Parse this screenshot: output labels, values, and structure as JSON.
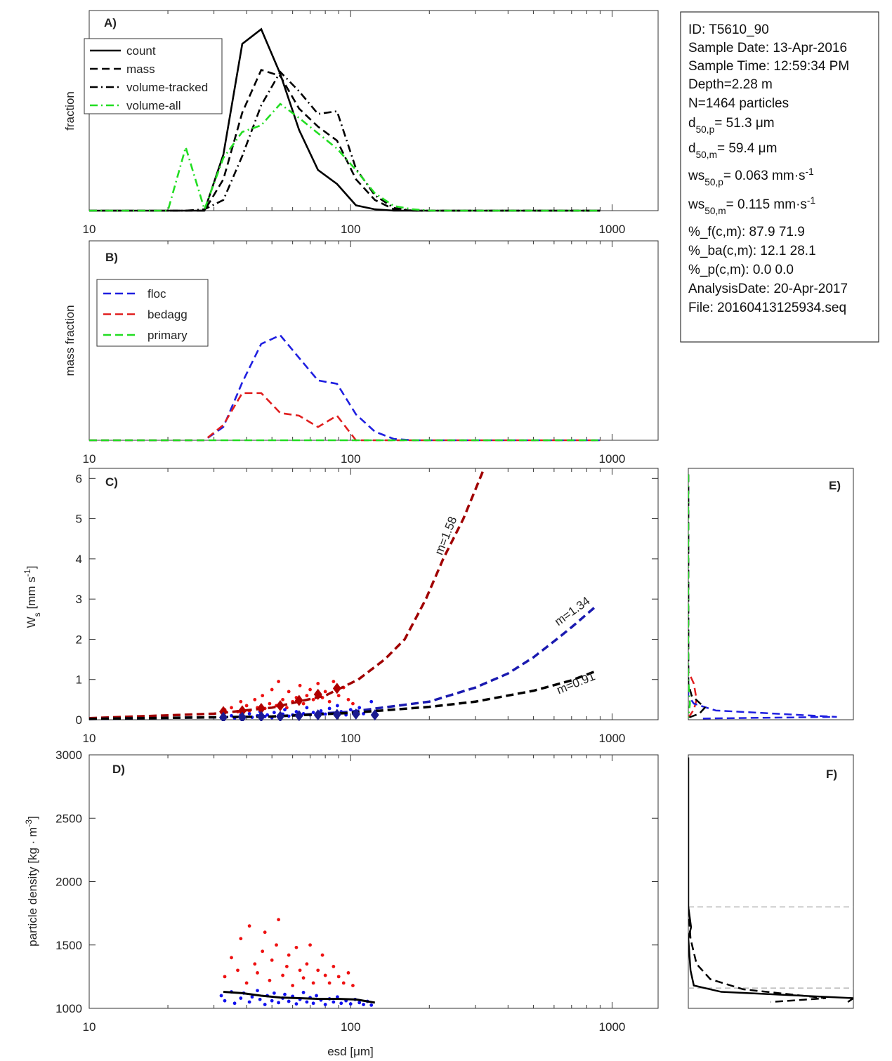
{
  "chart_data": [
    {
      "type": "line",
      "label": "A)",
      "y_label": "fraction",
      "xscale": "log",
      "xlim": [
        10,
        1500
      ],
      "ylim": [
        0,
        0.3
      ],
      "xticks": [
        10,
        100,
        1000
      ],
      "xticks_minor": [
        20,
        30,
        40,
        50,
        60,
        70,
        80,
        90,
        200,
        300,
        400,
        500,
        600,
        700,
        800,
        900
      ],
      "legend": "upper left",
      "x": [
        10,
        20,
        23.4,
        27.6,
        32.6,
        38.5,
        45.5,
        53.8,
        63.5,
        75,
        88.7,
        104.8,
        123.8,
        146.3,
        172.9,
        204,
        900
      ],
      "series": [
        {
          "name": "count",
          "color": "#000000",
          "linestyle": "solid",
          "values": [
            0,
            0,
            0,
            0,
            0.084,
            0.25,
            0.272,
            0.205,
            0.121,
            0.061,
            0.04,
            0.008,
            0.002,
            0,
            0,
            0,
            0
          ]
        },
        {
          "name": "mass",
          "color": "#000000",
          "linestyle": "dashed",
          "values": [
            0,
            0,
            0,
            0,
            0.047,
            0.147,
            0.211,
            0.202,
            0.153,
            0.126,
            0.105,
            0.047,
            0.016,
            0.002,
            0,
            0,
            0
          ]
        },
        {
          "name": "volume-tracked",
          "color": "#000000",
          "linestyle": "dashdot",
          "values": [
            0,
            0,
            0,
            0.002,
            0.016,
            0.082,
            0.158,
            0.208,
            0.179,
            0.145,
            0.149,
            0.063,
            0.023,
            0.004,
            0,
            0,
            0
          ]
        },
        {
          "name": "volume-all",
          "color": "#22dd22",
          "linestyle": "dashdot",
          "values": [
            0,
            0,
            0.095,
            0.002,
            0.079,
            0.118,
            0.128,
            0.16,
            0.139,
            0.116,
            0.093,
            0.061,
            0.026,
            0.007,
            0.002,
            0,
            0
          ]
        }
      ]
    },
    {
      "type": "line",
      "label": "B)",
      "y_label": "mass fraction",
      "xscale": "log",
      "xlim": [
        10,
        1500
      ],
      "ylim": [
        0,
        0.3
      ],
      "xticks": [
        10,
        100,
        1000
      ],
      "xticks_minor": [
        20,
        30,
        40,
        50,
        60,
        70,
        80,
        90,
        200,
        300,
        400,
        500,
        600,
        700,
        800,
        900
      ],
      "legend": "upper left",
      "x": [
        10,
        20,
        23.4,
        27.6,
        32.6,
        38.5,
        45.5,
        53.8,
        63.5,
        75,
        88.7,
        104.8,
        123.8,
        146.3,
        172.9,
        204,
        900
      ],
      "series": [
        {
          "name": "floc",
          "color": "#1f1fe0",
          "linestyle": "dashed",
          "values": [
            0,
            0,
            0,
            0,
            0.02,
            0.087,
            0.145,
            0.158,
            0.124,
            0.09,
            0.085,
            0.039,
            0.013,
            0.002,
            0,
            0,
            0
          ]
        },
        {
          "name": "bedagg",
          "color": "#e01f1f",
          "linestyle": "dashed",
          "values": [
            0,
            0,
            0,
            0,
            0.023,
            0.071,
            0.071,
            0.041,
            0.037,
            0.02,
            0.037,
            0,
            0,
            0,
            0,
            0,
            0
          ]
        },
        {
          "name": "primary",
          "color": "#22dd22",
          "linestyle": "dashed",
          "values": [
            0,
            0,
            0,
            0,
            0,
            0,
            0,
            0,
            0,
            0,
            0,
            0,
            0,
            0,
            0,
            0,
            0
          ]
        }
      ]
    },
    {
      "type": "scatter",
      "label": "C)",
      "y_label": [
        {
          "text": "W"
        },
        {
          "sub": "s"
        },
        {
          "text": " [mm s"
        },
        {
          "sup": "-1"
        },
        {
          "text": "]"
        }
      ],
      "xscale": "log",
      "xlim": [
        10,
        1500
      ],
      "ylim": [
        0,
        6.25
      ],
      "yticks": [
        0,
        1,
        2,
        3,
        4,
        5,
        6
      ],
      "xticks": [
        10,
        100,
        1000
      ],
      "xticks_minor": [
        20,
        30,
        40,
        50,
        60,
        70,
        80,
        90,
        200,
        300,
        400,
        500,
        600,
        700,
        800,
        900
      ],
      "annotations": [
        {
          "text": "m=1.58",
          "color": "#a00000"
        },
        {
          "text": "m=1.34",
          "color": "#1a1ab0"
        },
        {
          "text": "m=0.91",
          "color": "#000000"
        }
      ],
      "series": [
        {
          "color": "#ee1111",
          "marker": "points",
          "x": [
            33,
            35,
            37,
            38,
            40,
            41,
            43,
            44,
            46,
            47,
            49,
            50,
            52,
            53,
            55,
            57,
            58,
            60,
            62,
            64,
            66,
            68,
            70,
            72,
            75,
            78,
            80,
            83,
            86,
            90,
            94,
            98,
            102
          ],
          "values": [
            0.25,
            0.3,
            0.2,
            0.45,
            0.35,
            0.22,
            0.5,
            0.3,
            0.6,
            0.28,
            0.4,
            0.75,
            0.35,
            0.95,
            0.5,
            0.3,
            0.7,
            0.45,
            0.55,
            0.85,
            0.4,
            0.6,
            0.75,
            0.5,
            0.9,
            0.55,
            0.7,
            0.45,
            0.95,
            0.6,
            0.8,
            0.5,
            0.4
          ]
        },
        {
          "color": "#1111ee",
          "marker": "points",
          "x": [
            32,
            33,
            35,
            36,
            38,
            39,
            41,
            42,
            44,
            45,
            47,
            48,
            50,
            51,
            53,
            55,
            56,
            58,
            60,
            62,
            64,
            66,
            68,
            70,
            72,
            74,
            77,
            80,
            83,
            86,
            89,
            92,
            96,
            100,
            104,
            108,
            112,
            116,
            120
          ],
          "values": [
            0.05,
            0.08,
            0.1,
            0.04,
            0.12,
            0.07,
            0.15,
            0.06,
            0.1,
            0.2,
            0.08,
            0.12,
            0.05,
            0.18,
            0.1,
            0.14,
            0.25,
            0.09,
            0.12,
            0.2,
            0.1,
            0.15,
            0.3,
            0.12,
            0.18,
            0.1,
            0.22,
            0.14,
            0.28,
            0.16,
            0.35,
            0.2,
            0.12,
            0.25,
            0.18,
            0.3,
            0.15,
            0.22,
            0.45
          ]
        },
        {
          "color": "#a00000",
          "linestyle": "dashed",
          "x": [
            10,
            30,
            50,
            80,
            107,
            135,
            161,
            194,
            226,
            270,
            324
          ],
          "values": [
            0.04,
            0.15,
            0.3,
            0.6,
            1,
            1.5,
            2,
            3,
            4,
            5,
            6.25
          ]
        },
        {
          "color": "#1a1ab0",
          "linestyle": "dashed",
          "x": [
            10,
            50,
            100,
            200,
            300,
            400,
            500,
            600,
            700,
            860
          ],
          "values": [
            0.02,
            0.08,
            0.2,
            0.45,
            0.8,
            1.15,
            1.55,
            1.95,
            2.3,
            2.8
          ]
        },
        {
          "color": "#000000",
          "linestyle": "dashed",
          "x": [
            10,
            50,
            100,
            200,
            300,
            500,
            700,
            860
          ],
          "values": [
            0.02,
            0.08,
            0.17,
            0.32,
            0.45,
            0.72,
            0.98,
            1.2
          ]
        },
        {
          "color": "#b00000",
          "marker": "diamond",
          "x": [
            32.6,
            38.5,
            45.5,
            53.8,
            63.5,
            75,
            88.7
          ],
          "values": [
            0.2,
            0.22,
            0.28,
            0.35,
            0.48,
            0.63,
            0.78
          ]
        },
        {
          "color": "#1a1a90",
          "marker": "diamond",
          "x": [
            32.6,
            38.5,
            45.5,
            53.8,
            63.5,
            75,
            88.7,
            104.8,
            123.8
          ],
          "values": [
            0.06,
            0.06,
            0.08,
            0.08,
            0.1,
            0.12,
            0.13,
            0.14,
            0.12
          ]
        }
      ]
    },
    {
      "type": "scatter",
      "label": "D)",
      "y_label": [
        {
          "text": "particle density [kg · m"
        },
        {
          "sup": "-3"
        },
        {
          "text": "]"
        }
      ],
      "x_label": [
        {
          "text": "esd [μm]"
        }
      ],
      "xscale": "log",
      "xlim": [
        10,
        1500
      ],
      "ylim": [
        1000,
        3000
      ],
      "yticks": [
        1000,
        1500,
        2000,
        2500,
        3000
      ],
      "xticks": [
        10,
        100,
        1000
      ],
      "xticks_minor": [
        20,
        30,
        40,
        50,
        60,
        70,
        80,
        90,
        200,
        300,
        400,
        500,
        600,
        700,
        800,
        900
      ],
      "series": [
        {
          "color": "#ee1111",
          "marker": "points",
          "x": [
            33,
            35,
            37,
            38,
            40,
            41,
            43,
            44,
            46,
            47,
            49,
            50,
            52,
            53,
            55,
            57,
            58,
            60,
            62,
            64,
            66,
            68,
            70,
            72,
            75,
            78,
            80,
            83,
            86,
            90,
            94,
            98,
            102
          ],
          "values": [
            1250,
            1400,
            1300,
            1550,
            1200,
            1650,
            1350,
            1280,
            1450,
            1600,
            1220,
            1380,
            1500,
            1700,
            1260,
            1330,
            1420,
            1180,
            1480,
            1300,
            1240,
            1350,
            1500,
            1200,
            1300,
            1420,
            1260,
            1200,
            1330,
            1250,
            1200,
            1280,
            1180
          ]
        },
        {
          "color": "#1111ee",
          "marker": "points",
          "x": [
            32,
            33,
            35,
            36,
            38,
            39,
            41,
            42,
            44,
            45,
            47,
            48,
            50,
            51,
            53,
            55,
            56,
            58,
            60,
            62,
            64,
            66,
            68,
            70,
            72,
            74,
            77,
            80,
            83,
            86,
            89,
            92,
            96,
            100,
            104,
            108,
            112,
            116,
            120
          ],
          "values": [
            1100,
            1060,
            1130,
            1040,
            1080,
            1120,
            1050,
            1090,
            1140,
            1070,
            1030,
            1100,
            1060,
            1120,
            1045,
            1080,
            1110,
            1055,
            1095,
            1035,
            1070,
            1125,
            1050,
            1085,
            1040,
            1100,
            1065,
            1030,
            1075,
            1050,
            1090,
            1040,
            1060,
            1035,
            1070,
            1045,
            1030,
            1055,
            1025
          ]
        },
        {
          "color": "#000000",
          "linestyle": "solid",
          "x": [
            32.6,
            38.5,
            45.5,
            53.8,
            63.5,
            75,
            88.7,
            104.8,
            123.8
          ],
          "values": [
            1130,
            1120,
            1100,
            1085,
            1080,
            1075,
            1075,
            1070,
            1045
          ]
        }
      ]
    },
    {
      "type": "line",
      "label": "E)",
      "xlim": [
        0,
        0.3
      ],
      "ylim": [
        0,
        6.25
      ],
      "series": [
        {
          "color": "#e01f1f",
          "linestyle": "dashed",
          "x": [
            0,
            0,
            0.01,
            0.015,
            0.01,
            0
          ],
          "values": [
            6.1,
            1.2,
            0.9,
            0.5,
            0.25,
            0.05
          ]
        },
        {
          "color": "#1f1fe0",
          "linestyle": "dashed",
          "x": [
            0,
            0,
            0.01,
            0.05,
            0.27,
            0.02
          ],
          "values": [
            6.1,
            0.6,
            0.4,
            0.23,
            0.07,
            0.03
          ]
        },
        {
          "color": "#000000",
          "linestyle": "dashed",
          "x": [
            0,
            0,
            0.006,
            0.03,
            0.02,
            0
          ],
          "values": [
            6.1,
            0.9,
            0.6,
            0.3,
            0.15,
            0.05
          ]
        },
        {
          "color": "#22dd22",
          "linestyle": "dashdot",
          "x": [
            0,
            0,
            0.003,
            0
          ],
          "values": [
            6.1,
            1,
            0.4,
            0.05
          ]
        }
      ]
    },
    {
      "type": "line",
      "label": "F)",
      "xlim": [
        0,
        0.3
      ],
      "ylim": [
        1000,
        3000
      ],
      "hlines": [
        1800,
        1160
      ],
      "hline_color": "#aaaaaa",
      "series": [
        {
          "color": "#000000",
          "linestyle": "solid",
          "x": [
            0,
            0,
            0.005,
            0,
            0.004,
            0.01,
            0.06,
            0.3,
            0.29
          ],
          "values": [
            2980,
            1800,
            1640,
            1550,
            1300,
            1180,
            1130,
            1080,
            1050
          ]
        },
        {
          "color": "#000000",
          "linestyle": "dashed",
          "x": [
            0,
            0.004,
            0.015,
            0.04,
            0.1,
            0.25,
            0.15
          ],
          "values": [
            1800,
            1550,
            1350,
            1230,
            1150,
            1080,
            1050
          ]
        }
      ]
    }
  ],
  "info_box": {
    "lines": [
      [
        {
          "text": "ID: T5610_90"
        }
      ],
      [
        {
          "text": "Sample Date: 13-Apr-2016"
        }
      ],
      [
        {
          "text": "Sample Time: 12:59:34 PM"
        }
      ],
      [
        {
          "text": "Depth=2.28 m"
        }
      ],
      [
        {
          "text": "N=1464 particles"
        }
      ],
      [
        {
          "text": "d"
        },
        {
          "sub": "50,p"
        },
        {
          "text": "=  51.3 μm"
        }
      ],
      [
        {
          "text": "d"
        },
        {
          "sub": "50,m"
        },
        {
          "text": "=  59.4 μm"
        }
      ],
      [
        {
          "text": "ws"
        },
        {
          "sub": "50,p"
        },
        {
          "text": "= 0.063 mm·s"
        },
        {
          "sup": "-1"
        }
      ],
      [
        {
          "text": "ws"
        },
        {
          "sub": "50,m"
        },
        {
          "text": "= 0.115 mm·s"
        },
        {
          "sup": "-1"
        }
      ],
      [
        {
          "text": "%_f(c,m): 87.9 71.9"
        }
      ],
      [
        {
          "text": "%_ba(c,m): 12.1 28.1"
        }
      ],
      [
        {
          "text": "%_p(c,m): 0.0 0.0"
        }
      ],
      [
        {
          "text": "AnalysisDate: 20-Apr-2017"
        }
      ],
      [
        {
          "text": "File: 20160413125934.seq"
        }
      ]
    ]
  }
}
